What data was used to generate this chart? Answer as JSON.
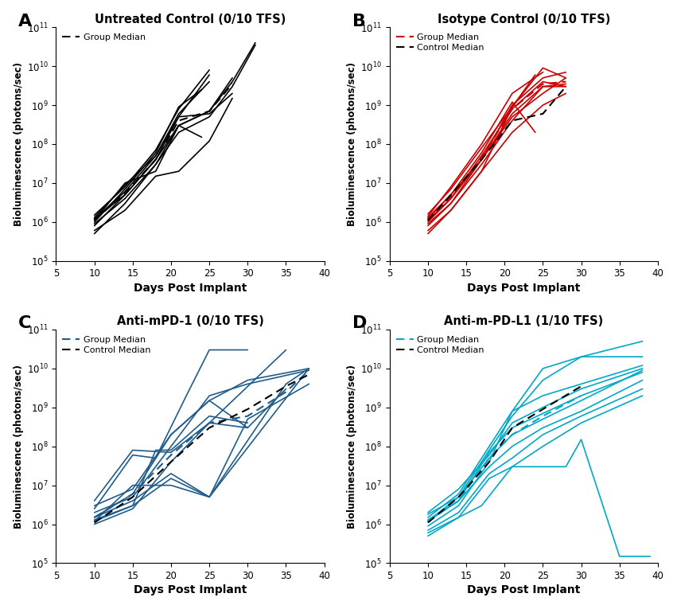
{
  "titles": [
    "Untreated Control (0/10 TFS)",
    "Isotype Control (0/10 TFS)",
    "Anti-mPD-1 (0/10 TFS)",
    "Anti-m-PD-L1 (1/10 TFS)"
  ],
  "panel_labels": [
    "A",
    "B",
    "C",
    "D"
  ],
  "colors": [
    "#000000",
    "#cc0000",
    "#1f5c8b",
    "#00a8c8"
  ],
  "xlabel": "Days Post Implant",
  "ylabel": "Bioluminescence (photons/sec)",
  "xlim": [
    5,
    40
  ],
  "ylim_log": [
    5,
    11
  ],
  "panels": {
    "A": {
      "individual_lines": [
        {
          "x": [
            10,
            14,
            18,
            21,
            25,
            28,
            31
          ],
          "y": [
            500000.0,
            3000000.0,
            30000000.0,
            200000000.0,
            500000000.0,
            3000000000.0,
            35000000000.0
          ]
        },
        {
          "x": [
            10,
            14,
            18,
            21,
            25,
            28,
            31
          ],
          "y": [
            800000.0,
            5000000.0,
            40000000.0,
            300000000.0,
            700000000.0,
            4000000000.0,
            40000000000.0
          ]
        },
        {
          "x": [
            10,
            14,
            18,
            21,
            25
          ],
          "y": [
            1200000.0,
            6000000.0,
            50000000.0,
            500000000.0,
            6000000000.0
          ]
        },
        {
          "x": [
            10,
            14,
            18,
            21,
            25
          ],
          "y": [
            1500000.0,
            8000000.0,
            70000000.0,
            800000000.0,
            8000000000.0
          ]
        },
        {
          "x": [
            10,
            14,
            18,
            21,
            24
          ],
          "y": [
            1000000.0,
            7000000.0,
            60000000.0,
            900000000.0,
            2500000000.0
          ]
        },
        {
          "x": [
            10,
            14,
            18,
            21,
            25
          ],
          "y": [
            1300000.0,
            9000000.0,
            50000000.0,
            600000000.0,
            4000000000.0
          ]
        },
        {
          "x": [
            10,
            14,
            18,
            21,
            24
          ],
          "y": [
            1100000.0,
            10000000.0,
            20000000.0,
            300000000.0,
            150000000.0
          ]
        },
        {
          "x": [
            10,
            14,
            18,
            21,
            25,
            28
          ],
          "y": [
            1200000.0,
            5000000.0,
            40000000.0,
            500000000.0,
            600000000.0,
            2000000000.0
          ]
        },
        {
          "x": [
            10,
            14,
            18,
            21,
            25,
            28
          ],
          "y": [
            900000.0,
            4000000.0,
            30000000.0,
            300000000.0,
            700000000.0,
            5000000000.0
          ]
        },
        {
          "x": [
            10,
            14,
            18,
            21,
            25,
            28
          ],
          "y": [
            600000.0,
            2000000.0,
            15000000.0,
            20000000.0,
            120000000.0,
            1500000000.0
          ]
        }
      ],
      "median_line": {
        "x": [
          10,
          14,
          18,
          21,
          25,
          28
        ],
        "y": [
          1100000.0,
          5500000.0,
          40000000.0,
          400000000.0,
          700000000.0,
          3500000000.0
        ],
        "color": "#000000",
        "label": "Group Median"
      },
      "show_control_median": false
    },
    "B": {
      "individual_lines": [
        {
          "x": [
            10,
            13,
            17,
            21,
            25,
            28
          ],
          "y": [
            600000.0,
            2000000.0,
            20000000.0,
            900000000.0,
            9000000000.0,
            5000000000.0
          ]
        },
        {
          "x": [
            10,
            13,
            17,
            21,
            25,
            28
          ],
          "y": [
            900000.0,
            3000000.0,
            40000000.0,
            1000000000.0,
            5000000000.0,
            7000000000.0
          ]
        },
        {
          "x": [
            10,
            13,
            17,
            21,
            24
          ],
          "y": [
            1300000.0,
            5000000.0,
            60000000.0,
            1200000000.0,
            200000000.0
          ]
        },
        {
          "x": [
            10,
            13,
            17,
            21,
            24
          ],
          "y": [
            1600000.0,
            7000000.0,
            80000000.0,
            900000000.0,
            6000000000.0
          ]
        },
        {
          "x": [
            10,
            13,
            17,
            21,
            25,
            28
          ],
          "y": [
            1100000.0,
            4000000.0,
            50000000.0,
            800000000.0,
            4000000000.0,
            3000000000.0
          ]
        },
        {
          "x": [
            10,
            13,
            17,
            21,
            25
          ],
          "y": [
            1400000.0,
            8000000.0,
            100000000.0,
            2000000000.0,
            7000000000.0
          ]
        },
        {
          "x": [
            10,
            13,
            17,
            21,
            25,
            28
          ],
          "y": [
            1000000.0,
            4000000.0,
            40000000.0,
            600000000.0,
            3000000000.0,
            3000000000.0
          ]
        },
        {
          "x": [
            10,
            13,
            17,
            21,
            25,
            28
          ],
          "y": [
            1200000.0,
            5000000.0,
            40000000.0,
            500000000.0,
            2000000000.0,
            5000000000.0
          ]
        },
        {
          "x": [
            10,
            13,
            17,
            21,
            25,
            28
          ],
          "y": [
            800000.0,
            3000000.0,
            30000000.0,
            400000000.0,
            3000000000.0,
            3500000000.0
          ]
        },
        {
          "x": [
            10,
            13,
            17,
            21,
            25,
            28
          ],
          "y": [
            500000.0,
            2000000.0,
            20000000.0,
            200000000.0,
            1000000000.0,
            2000000000.0
          ]
        }
      ],
      "median_line": {
        "x": [
          10,
          13,
          17,
          21,
          25,
          28
        ],
        "y": [
          1100000.0,
          4500000.0,
          45000000.0,
          800000000.0,
          3500000000.0,
          4000000000.0
        ],
        "color": "#cc0000",
        "label": "Group Median"
      },
      "control_median": {
        "x": [
          10,
          13,
          17,
          21,
          25,
          28
        ],
        "y": [
          1100000.0,
          5000000.0,
          40000000.0,
          400000000.0,
          600000000.0,
          3000000000.0
        ],
        "color": "#000000",
        "label": "Control Median"
      },
      "show_control_median": true
    },
    "C": {
      "individual_lines": [
        {
          "x": [
            10,
            15,
            18,
            22,
            25,
            30
          ],
          "y": [
            2500000.0,
            60000000.0,
            50000000.0,
            2000000000.0,
            30000000000.0,
            30000000000.0
          ]
        },
        {
          "x": [
            10,
            15,
            20,
            25,
            30,
            38
          ],
          "y": [
            1500000.0,
            6000000.0,
            200000000.0,
            1500000000.0,
            5000000000.0,
            10000000000.0
          ]
        },
        {
          "x": [
            10,
            15,
            20,
            25,
            30,
            38
          ],
          "y": [
            2000000.0,
            5000000.0,
            100000000.0,
            2000000000.0,
            4000000000.0,
            9000000000.0
          ]
        },
        {
          "x": [
            10,
            15,
            20,
            25,
            30,
            35
          ],
          "y": [
            3000000.0,
            8000000.0,
            200000000.0,
            1500000000.0,
            300000000.0,
            3000000000.0
          ]
        },
        {
          "x": [
            10,
            15,
            20,
            25,
            30
          ],
          "y": [
            4000000.0,
            80000000.0,
            70000000.0,
            400000000.0,
            300000000.0
          ]
        },
        {
          "x": [
            10,
            15,
            20,
            25,
            30,
            38
          ],
          "y": [
            1200000.0,
            10000000.0,
            10000000.0,
            5000000.0,
            500000000.0,
            4000000000.0
          ]
        },
        {
          "x": [
            10,
            15,
            18,
            20,
            25,
            30
          ],
          "y": [
            1300000.0,
            3000000.0,
            80000000.0,
            80000000.0,
            600000000.0,
            400000000.0
          ]
        },
        {
          "x": [
            10,
            15,
            20,
            25,
            38
          ],
          "y": [
            1500000.0,
            4000000.0,
            20000000.0,
            5000000.0,
            10000000000.0
          ]
        },
        {
          "x": [
            10,
            15,
            20,
            25,
            35,
            38
          ],
          "y": [
            1200000.0,
            3000000.0,
            15000000.0,
            5000000.0,
            4000000000.0,
            10000000000.0
          ]
        },
        {
          "x": [
            10,
            15,
            20,
            25,
            35
          ],
          "y": [
            1000000.0,
            2500000.0,
            40000000.0,
            400000000.0,
            30000000000.0
          ]
        }
      ],
      "median_line": {
        "x": [
          10,
          15,
          20,
          25,
          30,
          35,
          38
        ],
        "y": [
          1500000.0,
          6000000.0,
          60000000.0,
          400000000.0,
          600000000.0,
          2500000000.0,
          9000000000.0
        ],
        "color": "#1f5c8b",
        "label": "Group Median"
      },
      "control_median": {
        "x": [
          10,
          15,
          20,
          25,
          30,
          35,
          38
        ],
        "y": [
          1100000.0,
          5000000.0,
          40000000.0,
          300000000.0,
          900000000.0,
          3500000000.0,
          7000000000.0
        ],
        "color": "#000000",
        "label": "Control Median"
      },
      "show_control_median": true
    },
    "D": {
      "individual_lines": [
        {
          "x": [
            10,
            14,
            18,
            21,
            25,
            30,
            38
          ],
          "y": [
            900000.0,
            3000000.0,
            40000000.0,
            800000000.0,
            10000000000.0,
            20000000000.0,
            50000000000.0
          ]
        },
        {
          "x": [
            10,
            14,
            18,
            21,
            25,
            30,
            38
          ],
          "y": [
            1200000.0,
            5000000.0,
            80000000.0,
            600000000.0,
            5000000000.0,
            20000000000.0,
            20000000000.0
          ]
        },
        {
          "x": [
            10,
            14,
            18,
            21,
            25,
            30,
            38
          ],
          "y": [
            1500000.0,
            6000000.0,
            100000000.0,
            800000000.0,
            2000000000.0,
            4000000000.0,
            12000000000.0
          ]
        },
        {
          "x": [
            10,
            14,
            18,
            21,
            25,
            30,
            38
          ],
          "y": [
            2000000.0,
            8000000.0,
            60000000.0,
            400000000.0,
            1000000000.0,
            3000000000.0,
            10000000000.0
          ]
        },
        {
          "x": [
            10,
            14,
            18,
            21,
            25,
            30,
            38
          ],
          "y": [
            1800000.0,
            5000000.0,
            50000000.0,
            200000000.0,
            500000000.0,
            1500000000.0,
            9000000000.0
          ]
        },
        {
          "x": [
            10,
            14,
            18,
            21,
            25,
            30,
            38
          ],
          "y": [
            1300000.0,
            4000000.0,
            30000000.0,
            100000000.0,
            300000000.0,
            800000000.0,
            5000000000.0
          ]
        },
        {
          "x": [
            10,
            14,
            17,
            21,
            28,
            30,
            35,
            39
          ],
          "y": [
            600000.0,
            1500000.0,
            3000000.0,
            30000000.0,
            30000000.0,
            150000000.0,
            150000.0,
            150000.0
          ]
        },
        {
          "x": [
            10,
            14,
            18,
            21,
            25,
            30,
            38
          ],
          "y": [
            700000.0,
            2000000.0,
            20000000.0,
            50000000.0,
            200000000.0,
            600000000.0,
            3000000000.0
          ]
        },
        {
          "x": [
            10,
            14,
            18,
            21,
            25,
            30,
            38
          ],
          "y": [
            500000.0,
            1500000.0,
            15000000.0,
            30000000.0,
            100000000.0,
            400000000.0,
            2000000000.0
          ]
        },
        {
          "x": [
            10,
            14,
            18,
            21,
            25,
            30,
            38
          ],
          "y": [
            1200000.0,
            4000000.0,
            70000000.0,
            300000000.0,
            700000000.0,
            2000000000.0,
            8000000000.0
          ]
        }
      ],
      "median_line": {
        "x": [
          10,
          14,
          18,
          21,
          25,
          30
        ],
        "y": [
          1200000.0,
          4000000.0,
          50000000.0,
          200000000.0,
          600000000.0,
          2000000000.0
        ],
        "color": "#00a8c8",
        "label": "Group Median"
      },
      "control_median": {
        "x": [
          10,
          14,
          18,
          21,
          25,
          30
        ],
        "y": [
          1100000.0,
          5000000.0,
          40000000.0,
          300000000.0,
          900000000.0,
          3500000000.0
        ],
        "color": "#000000",
        "label": "Control Median"
      },
      "show_control_median": true
    }
  }
}
